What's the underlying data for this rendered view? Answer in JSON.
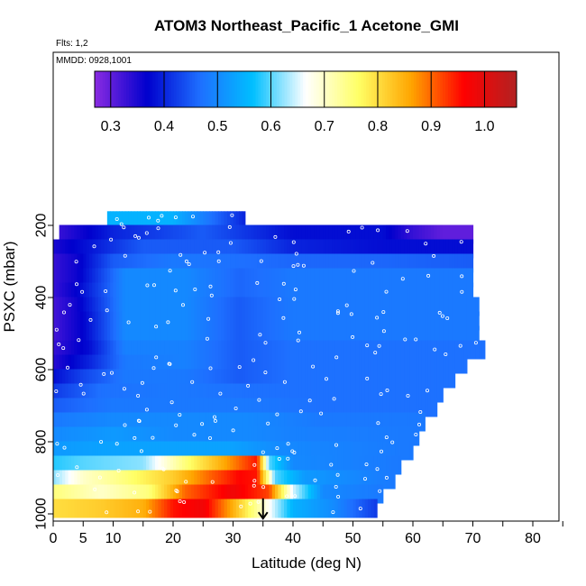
{
  "chart_data": {
    "type": "heatmap",
    "title": "ATOM3 Northeast_Pacific_1 Acetone_GMI",
    "flights_label": "Flts: 1,2",
    "dates_label": "MMDD: 0928,1001",
    "xlabel": "Latitude (deg N)",
    "ylabel": "PSXC (mbar)",
    "xlim": [
      0,
      85
    ],
    "ylim": [
      1000,
      100
    ],
    "x_ticks": [
      0,
      5,
      10,
      20,
      30,
      40,
      50,
      60,
      70,
      80
    ],
    "y_ticks": [
      200,
      400,
      600,
      800,
      1000
    ],
    "colorbar": {
      "range": [
        0.27,
        1.06
      ],
      "ticks": [
        0.3,
        0.4,
        0.5,
        0.6,
        0.7,
        0.8,
        0.9,
        1.0
      ],
      "tick_labels": [
        "0.3",
        "0.4",
        "0.5",
        "0.6",
        "0.7",
        "0.8",
        "0.9",
        "1.0"
      ],
      "colors": [
        "#8a2be2",
        "#0000cd",
        "#1e6fff",
        "#00bfff",
        "#ffffff",
        "#ffff66",
        "#ffa500",
        "#ff0000",
        "#b22222"
      ]
    },
    "levels": [
      {
        "p": 187,
        "x_range": [
          9,
          32
        ],
        "nodes": [
          [
            9,
            0.55
          ],
          [
            20,
            0.55
          ],
          [
            28,
            0.45
          ],
          [
            32,
            0.4
          ]
        ]
      },
      {
        "p": 225,
        "x_range": [
          1,
          70
        ],
        "nodes": [
          [
            1,
            0.33
          ],
          [
            10,
            0.4
          ],
          [
            25,
            0.45
          ],
          [
            40,
            0.38
          ],
          [
            55,
            0.38
          ],
          [
            60,
            0.33
          ],
          [
            65,
            0.3
          ],
          [
            70,
            0.3
          ]
        ]
      },
      {
        "p": 265,
        "x_range": [
          0,
          70
        ],
        "nodes": [
          [
            0,
            0.35
          ],
          [
            5,
            0.38
          ],
          [
            15,
            0.45
          ],
          [
            30,
            0.45
          ],
          [
            40,
            0.4
          ],
          [
            55,
            0.38
          ],
          [
            70,
            0.38
          ]
        ]
      },
      {
        "p": 305,
        "x_range": [
          0,
          70
        ],
        "nodes": [
          [
            0,
            0.33
          ],
          [
            4,
            0.36
          ],
          [
            10,
            0.45
          ],
          [
            20,
            0.48
          ],
          [
            30,
            0.47
          ],
          [
            40,
            0.46
          ],
          [
            55,
            0.46
          ],
          [
            70,
            0.45
          ]
        ]
      },
      {
        "p": 345,
        "x_range": [
          0,
          70
        ],
        "nodes": [
          [
            0,
            0.33
          ],
          [
            4,
            0.36
          ],
          [
            12,
            0.5
          ],
          [
            22,
            0.5
          ],
          [
            31,
            0.46
          ],
          [
            40,
            0.48
          ],
          [
            70,
            0.48
          ]
        ]
      },
      {
        "p": 385,
        "x_range": [
          0,
          70
        ],
        "nodes": [
          [
            0,
            0.33
          ],
          [
            4,
            0.37
          ],
          [
            12,
            0.5
          ],
          [
            22,
            0.5
          ],
          [
            31,
            0.46
          ],
          [
            40,
            0.48
          ],
          [
            70,
            0.48
          ]
        ]
      },
      {
        "p": 425,
        "x_range": [
          0,
          71
        ],
        "nodes": [
          [
            0,
            0.32
          ],
          [
            4,
            0.36
          ],
          [
            12,
            0.5
          ],
          [
            22,
            0.5
          ],
          [
            31,
            0.45
          ],
          [
            40,
            0.48
          ],
          [
            71,
            0.48
          ]
        ]
      },
      {
        "p": 465,
        "x_range": [
          0,
          71
        ],
        "nodes": [
          [
            0,
            0.32
          ],
          [
            5,
            0.37
          ],
          [
            12,
            0.5
          ],
          [
            22,
            0.5
          ],
          [
            31,
            0.45
          ],
          [
            40,
            0.48
          ],
          [
            71,
            0.48
          ]
        ]
      },
      {
        "p": 505,
        "x_range": [
          0,
          71
        ],
        "nodes": [
          [
            0,
            0.32
          ],
          [
            5,
            0.37
          ],
          [
            12,
            0.5
          ],
          [
            22,
            0.5
          ],
          [
            31,
            0.45
          ],
          [
            40,
            0.48
          ],
          [
            71,
            0.48
          ]
        ]
      },
      {
        "p": 545,
        "x_range": [
          0,
          72
        ],
        "nodes": [
          [
            0,
            0.33
          ],
          [
            6,
            0.38
          ],
          [
            12,
            0.49
          ],
          [
            22,
            0.49
          ],
          [
            31,
            0.45
          ],
          [
            40,
            0.47
          ],
          [
            72,
            0.47
          ]
        ]
      },
      {
        "p": 585,
        "x_range": [
          0,
          69
        ],
        "nodes": [
          [
            0,
            0.34
          ],
          [
            6,
            0.4
          ],
          [
            12,
            0.48
          ],
          [
            22,
            0.49
          ],
          [
            31,
            0.45
          ],
          [
            40,
            0.47
          ],
          [
            69,
            0.47
          ]
        ]
      },
      {
        "p": 625,
        "x_range": [
          0,
          67
        ],
        "nodes": [
          [
            0,
            0.38
          ],
          [
            5,
            0.43
          ],
          [
            12,
            0.48
          ],
          [
            22,
            0.48
          ],
          [
            31,
            0.45
          ],
          [
            40,
            0.47
          ],
          [
            67,
            0.47
          ]
        ]
      },
      {
        "p": 665,
        "x_range": [
          0,
          65
        ],
        "nodes": [
          [
            0,
            0.42
          ],
          [
            8,
            0.47
          ],
          [
            20,
            0.48
          ],
          [
            32,
            0.47
          ],
          [
            45,
            0.47
          ],
          [
            65,
            0.47
          ]
        ]
      },
      {
        "p": 705,
        "x_range": [
          0,
          64
        ],
        "nodes": [
          [
            0,
            0.45
          ],
          [
            10,
            0.48
          ],
          [
            20,
            0.48
          ],
          [
            32,
            0.48
          ],
          [
            45,
            0.47
          ],
          [
            64,
            0.47
          ]
        ]
      },
      {
        "p": 745,
        "x_range": [
          0,
          62
        ],
        "nodes": [
          [
            0,
            0.48
          ],
          [
            10,
            0.5
          ],
          [
            20,
            0.5
          ],
          [
            32,
            0.5
          ],
          [
            45,
            0.48
          ],
          [
            62,
            0.48
          ]
        ]
      },
      {
        "p": 785,
        "x_range": [
          0,
          61
        ],
        "nodes": [
          [
            0,
            0.5
          ],
          [
            10,
            0.52
          ],
          [
            20,
            0.5
          ],
          [
            32,
            0.5
          ],
          [
            40,
            0.49
          ],
          [
            61,
            0.48
          ]
        ]
      },
      {
        "p": 825,
        "x_range": [
          0,
          60
        ],
        "nodes": [
          [
            0,
            0.52
          ],
          [
            8,
            0.53
          ],
          [
            20,
            0.53
          ],
          [
            30,
            0.53
          ],
          [
            38,
            0.5
          ],
          [
            60,
            0.48
          ]
        ]
      },
      {
        "p": 865,
        "x_range": [
          0,
          58
        ],
        "nodes": [
          [
            0,
            0.58
          ],
          [
            5,
            0.6
          ],
          [
            15,
            0.62
          ],
          [
            22,
            0.75
          ],
          [
            28,
            0.85
          ],
          [
            34,
            0.95
          ],
          [
            36,
            0.6
          ],
          [
            40,
            0.5
          ],
          [
            58,
            0.48
          ]
        ]
      },
      {
        "p": 905,
        "x_range": [
          0,
          57
        ],
        "nodes": [
          [
            0,
            0.62
          ],
          [
            5,
            0.7
          ],
          [
            12,
            0.75
          ],
          [
            20,
            0.82
          ],
          [
            26,
            0.9
          ],
          [
            31,
            0.96
          ],
          [
            34,
            0.95
          ],
          [
            37,
            0.6
          ],
          [
            42,
            0.52
          ],
          [
            57,
            0.48
          ]
        ]
      },
      {
        "p": 945,
        "x_range": [
          0,
          55
        ],
        "nodes": [
          [
            0,
            0.75
          ],
          [
            8,
            0.7
          ],
          [
            16,
            0.75
          ],
          [
            22,
            0.9
          ],
          [
            30,
            0.98
          ],
          [
            36,
            0.92
          ],
          [
            40,
            0.65
          ],
          [
            45,
            0.5
          ],
          [
            55,
            0.48
          ]
        ]
      },
      {
        "p": 985,
        "x_range": [
          0,
          54
        ],
        "nodes": [
          [
            0,
            0.8
          ],
          [
            8,
            0.82
          ],
          [
            15,
            0.85
          ],
          [
            20,
            0.95
          ],
          [
            25,
            0.98
          ],
          [
            30,
            0.85
          ],
          [
            35,
            0.7
          ],
          [
            40,
            0.55
          ],
          [
            47,
            0.5
          ],
          [
            54,
            0.42
          ]
        ]
      }
    ],
    "highlight_arrow": {
      "lat": 35,
      "p_top": 957,
      "p_bottom": 1003
    },
    "sample_points": "white open circles marking flight observation locations"
  }
}
